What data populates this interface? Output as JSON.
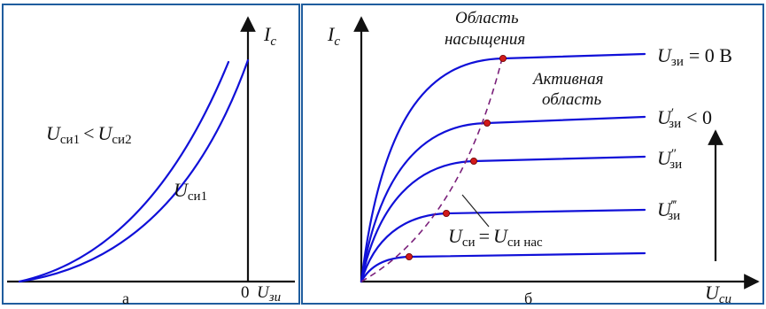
{
  "panel_a": {
    "caption": "а",
    "y_axis": {
      "main": "I",
      "sub": "c"
    },
    "x_axis": {
      "zero": "0",
      "main": "U",
      "sub": "зи"
    },
    "label_compare": {
      "main1": "U",
      "sub1": "си1",
      "rel": "<",
      "main2": "U",
      "sub2": "си2"
    },
    "label_curve": {
      "main": "U",
      "sub": "си1"
    }
  },
  "panel_b": {
    "caption": "б",
    "y_axis": {
      "main": "I",
      "sub": "c"
    },
    "x_axis": {
      "main": "U",
      "sub": "си"
    },
    "region_saturation": [
      "Область",
      "насыщения"
    ],
    "region_active": [
      "Активная",
      "область"
    ],
    "label_sat_boundary": {
      "main1": "U",
      "sub1": "си",
      "rel": "=",
      "main2": "U",
      "sub2": "си нас"
    },
    "curve_labels": [
      {
        "main": "U",
        "sub": "зи",
        "prime": "",
        "rel": "= 0 В"
      },
      {
        "main": "U",
        "sub": "зи",
        "prime": "′",
        "rel": "< 0"
      },
      {
        "main": "U",
        "sub": "зи",
        "prime": "″",
        "rel": ""
      },
      {
        "main": "U",
        "sub": "зи",
        "prime": "‴",
        "rel": ""
      }
    ]
  },
  "colors": {
    "curve": "#1010d8",
    "boundary": "#7a1f7a",
    "dot": "#d11a1a",
    "border": "#1f5d9e"
  }
}
